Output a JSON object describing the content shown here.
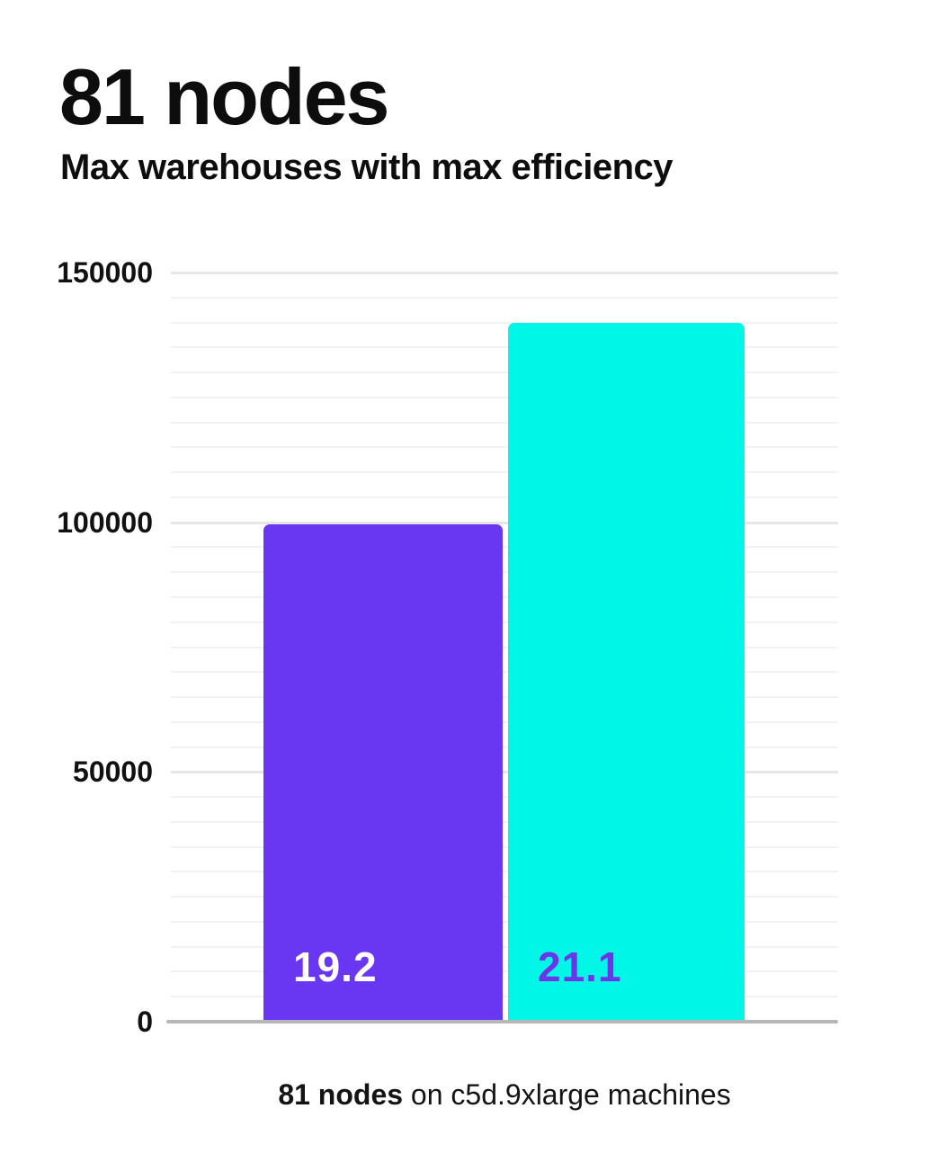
{
  "header": {
    "title": "81 nodes",
    "subtitle": "Max warehouses with max efficiency"
  },
  "chart_data": {
    "type": "bar",
    "title": "81 nodes",
    "subtitle": "Max warehouses with max efficiency",
    "categories": [
      "19.2",
      "21.1"
    ],
    "values": [
      99500,
      140000
    ],
    "bars": [
      {
        "label": "19.2",
        "value": 99500,
        "color": "#6936F2",
        "label_color": "#FFFFFF"
      },
      {
        "label": "21.1",
        "value": 140000,
        "color": "#00F7E7",
        "label_color": "#6C35E8"
      }
    ],
    "xlabel": "",
    "ylabel": "",
    "ylim": [
      0,
      150000
    ],
    "yticks": [
      0,
      50000,
      100000,
      150000
    ],
    "ytick_labels": [
      "0",
      "50000",
      "100000",
      "150000"
    ],
    "minor_grid_step": 5000,
    "grid": "horizontal",
    "legend": "none",
    "caption": "81 nodes on c5d.9xlarge machines"
  },
  "caption": {
    "bold": "81 nodes",
    "rest": " on c5d.9xlarge machines"
  },
  "colors": {
    "background": "#FFFFFF",
    "title_text": "#0D0D0D",
    "bar_purple": "#6936F2",
    "bar_cyan": "#00F7E7",
    "label_on_purple": "#FFFFFF",
    "label_on_cyan": "#6C35E8",
    "axis_line": "#B7B7B7",
    "major_gridline": "#E6E6E6",
    "minor_gridline": "#F2F2F2",
    "tick_text": "#111111"
  }
}
